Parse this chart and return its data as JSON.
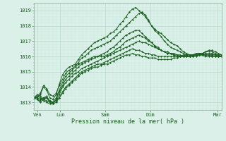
{
  "xlabel": "Pression niveau de la mer( hPa )",
  "ylim": [
    1012.5,
    1019.5
  ],
  "xlim": [
    0,
    100
  ],
  "bg_color": "#daf0e8",
  "plot_bg_color": "#daf0e8",
  "grid_color_major": "#b8d8cc",
  "grid_color_minor": "#c8e8dc",
  "line_color": "#1a6020",
  "tick_labels": [
    "Ven",
    "Lun",
    "Sam",
    "Dim",
    "Mar"
  ],
  "tick_positions": [
    2,
    14,
    38,
    62,
    98
  ],
  "yticks": [
    1013,
    1014,
    1015,
    1016,
    1017,
    1018,
    1019
  ],
  "series": [
    [
      1013.3,
      1013.3,
      1013.5,
      1014.0,
      1013.8,
      1013.3,
      1013.2,
      1013.5,
      1014.2,
      1014.8,
      1015.1,
      1015.3,
      1015.4,
      1015.5,
      1015.8,
      1016.1,
      1016.3,
      1016.5,
      1016.7,
      1016.9,
      1017.0,
      1017.1,
      1017.2,
      1017.3,
      1017.5,
      1017.6,
      1017.8,
      1018.1,
      1018.3,
      1018.6,
      1018.9,
      1019.1,
      1019.2,
      1019.0,
      1018.8,
      1018.6,
      1018.3,
      1018.0,
      1017.8,
      1017.6,
      1017.5,
      1017.3,
      1017.1,
      1016.9,
      1016.8,
      1016.7,
      1016.5,
      1016.3,
      1016.2,
      1016.1,
      1016.0,
      1016.0,
      1016.1,
      1016.2,
      1016.3,
      1016.4,
      1016.4,
      1016.3,
      1016.2,
      1016.1
    ],
    [
      1013.3,
      1013.4,
      1013.6,
      1014.1,
      1013.9,
      1013.5,
      1013.4,
      1013.6,
      1014.1,
      1014.5,
      1014.9,
      1015.1,
      1015.2,
      1015.4,
      1015.6,
      1015.9,
      1016.0,
      1016.2,
      1016.4,
      1016.5,
      1016.6,
      1016.7,
      1016.8,
      1016.9,
      1017.0,
      1017.2,
      1017.4,
      1017.6,
      1017.8,
      1018.0,
      1018.2,
      1018.4,
      1018.6,
      1018.8,
      1018.9,
      1018.7,
      1018.4,
      1018.0,
      1017.7,
      1017.5,
      1017.3,
      1017.0,
      1016.8,
      1016.6,
      1016.5,
      1016.4,
      1016.3,
      1016.2,
      1016.1,
      1016.0,
      1016.0,
      1016.1,
      1016.2,
      1016.2,
      1016.3,
      1016.3,
      1016.3,
      1016.2,
      1016.1,
      1016.1
    ],
    [
      1013.3,
      1013.2,
      1013.1,
      1013.3,
      1013.4,
      1013.1,
      1013.0,
      1013.3,
      1013.8,
      1014.3,
      1014.7,
      1014.9,
      1015.1,
      1015.3,
      1015.5,
      1015.6,
      1015.7,
      1015.8,
      1015.9,
      1016.0,
      1016.0,
      1016.1,
      1016.2,
      1016.3,
      1016.5,
      1016.6,
      1016.8,
      1017.0,
      1017.2,
      1017.4,
      1017.5,
      1017.6,
      1017.7,
      1017.7,
      1017.5,
      1017.3,
      1017.1,
      1016.9,
      1016.7,
      1016.5,
      1016.4,
      1016.3,
      1016.2,
      1016.2,
      1016.1,
      1016.1,
      1016.0,
      1016.0,
      1016.0,
      1016.0,
      1016.1,
      1016.2,
      1016.2,
      1016.2,
      1016.2,
      1016.2,
      1016.2,
      1016.1,
      1016.1,
      1016.1
    ],
    [
      1013.3,
      1013.2,
      1013.0,
      1013.2,
      1013.3,
      1013.0,
      1012.9,
      1013.2,
      1013.7,
      1014.1,
      1014.5,
      1014.7,
      1014.9,
      1015.1,
      1015.3,
      1015.5,
      1015.6,
      1015.7,
      1015.8,
      1015.9,
      1016.0,
      1016.0,
      1016.0,
      1016.1,
      1016.2,
      1016.3,
      1016.5,
      1016.6,
      1016.8,
      1017.0,
      1017.1,
      1017.2,
      1017.3,
      1017.4,
      1017.3,
      1017.2,
      1017.0,
      1016.9,
      1016.7,
      1016.6,
      1016.4,
      1016.3,
      1016.2,
      1016.2,
      1016.1,
      1016.0,
      1016.0,
      1016.0,
      1016.0,
      1016.0,
      1016.1,
      1016.1,
      1016.1,
      1016.1,
      1016.1,
      1016.1,
      1016.1,
      1016.1,
      1016.0,
      1016.0
    ],
    [
      1013.3,
      1013.3,
      1013.2,
      1013.3,
      1013.3,
      1013.1,
      1013.0,
      1013.1,
      1013.5,
      1014.0,
      1014.3,
      1014.5,
      1014.7,
      1014.9,
      1015.0,
      1015.2,
      1015.3,
      1015.4,
      1015.5,
      1015.6,
      1015.7,
      1015.8,
      1015.9,
      1016.0,
      1016.1,
      1016.2,
      1016.3,
      1016.4,
      1016.5,
      1016.6,
      1016.7,
      1016.8,
      1016.9,
      1017.0,
      1016.9,
      1016.9,
      1016.8,
      1016.7,
      1016.6,
      1016.5,
      1016.4,
      1016.3,
      1016.3,
      1016.2,
      1016.2,
      1016.1,
      1016.1,
      1016.0,
      1016.0,
      1016.0,
      1016.1,
      1016.1,
      1016.1,
      1016.1,
      1016.1,
      1016.1,
      1016.1,
      1016.1,
      1016.0,
      1016.0
    ],
    [
      1013.3,
      1013.4,
      1013.3,
      1013.1,
      1013.0,
      1012.9,
      1012.9,
      1013.0,
      1013.3,
      1013.7,
      1014.0,
      1014.2,
      1014.4,
      1014.6,
      1014.8,
      1015.0,
      1015.1,
      1015.2,
      1015.3,
      1015.4,
      1015.5,
      1015.5,
      1015.6,
      1015.7,
      1015.8,
      1015.9,
      1016.0,
      1016.1,
      1016.2,
      1016.3,
      1016.4,
      1016.5,
      1016.4,
      1016.4,
      1016.3,
      1016.2,
      1016.2,
      1016.1,
      1016.1,
      1016.0,
      1016.0,
      1016.0,
      1016.0,
      1016.0,
      1016.0,
      1016.0,
      1016.0,
      1016.1,
      1016.1,
      1016.1,
      1016.1,
      1016.1,
      1016.1,
      1016.1,
      1016.1,
      1016.1,
      1016.0,
      1016.0,
      1016.0,
      1016.0
    ],
    [
      1013.3,
      1013.5,
      1013.4,
      1013.2,
      1013.1,
      1013.0,
      1013.0,
      1013.1,
      1013.3,
      1013.6,
      1013.9,
      1014.1,
      1014.3,
      1014.5,
      1014.7,
      1014.9,
      1015.0,
      1015.1,
      1015.2,
      1015.3,
      1015.3,
      1015.4,
      1015.5,
      1015.5,
      1015.6,
      1015.7,
      1015.8,
      1015.9,
      1016.0,
      1016.1,
      1016.1,
      1016.2,
      1016.1,
      1016.1,
      1016.0,
      1016.0,
      1015.9,
      1015.9,
      1015.9,
      1015.8,
      1015.8,
      1015.8,
      1015.8,
      1015.8,
      1015.9,
      1015.9,
      1016.0,
      1016.0,
      1016.1,
      1016.1,
      1016.1,
      1016.1,
      1016.1,
      1016.1,
      1016.0,
      1016.0,
      1016.0,
      1016.0,
      1016.0,
      1016.0
    ]
  ],
  "marker": "D",
  "markersize": 1.2,
  "linewidth": 0.7
}
